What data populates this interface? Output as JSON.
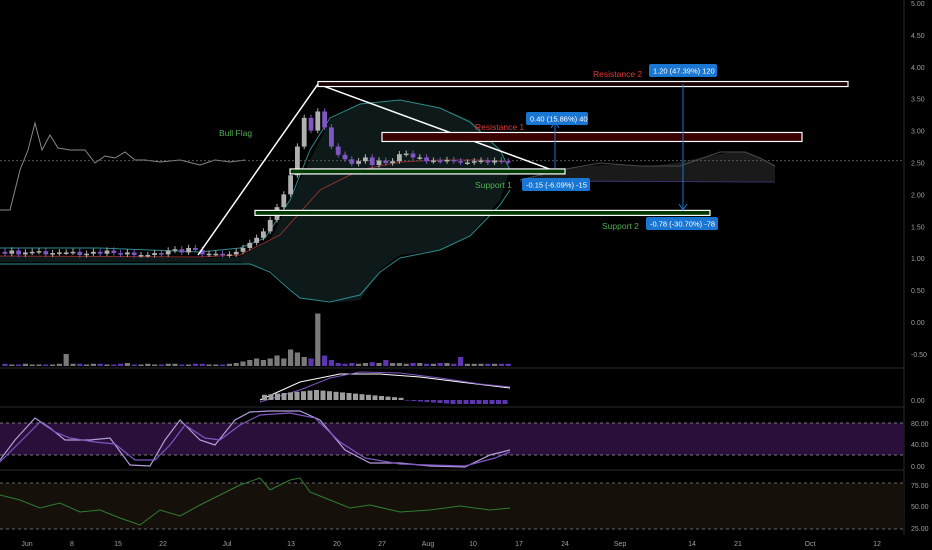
{
  "chart_data": {
    "type": "candlestick",
    "title": "",
    "price_axis": {
      "ticks": [
        "5.00",
        "4.50",
        "4.00",
        "3.50",
        "3.00",
        "2.50",
        "2.00",
        "1.50",
        "1.00",
        "0.50",
        "0.00",
        "-0.50"
      ],
      "ylim": [
        -0.5,
        5.0
      ]
    },
    "x_axis": {
      "ticks": [
        "Jun",
        "8",
        "15",
        "22",
        "Jul",
        "13",
        "20",
        "27",
        "Aug",
        "10",
        "17",
        "24",
        "Sep",
        "14",
        "21",
        "Oct",
        "12"
      ]
    },
    "candles": {
      "date_range": [
        "Jun 1",
        "Aug 14"
      ],
      "open": [
        1.1,
        1.07,
        1.12,
        1.06,
        1.09,
        1.1,
        1.11,
        1.06,
        1.08,
        1.09,
        1.09,
        1.1,
        1.05,
        1.07,
        1.1,
        1.07,
        1.12,
        1.08,
        1.06,
        1.09,
        1.05,
        1.05,
        1.05,
        1.08,
        1.06,
        1.12,
        1.14,
        1.09,
        1.16,
        1.13,
        1.06,
        1.07,
        1.07,
        1.05,
        1.06,
        1.1,
        1.16,
        1.24,
        1.32,
        1.42,
        1.6,
        1.8,
        2.0,
        2.3,
        2.75,
        3.2,
        3.0,
        3.3,
        3.05,
        2.75,
        2.62,
        2.55,
        2.48,
        2.52,
        2.58,
        2.46,
        2.53,
        2.49,
        2.52,
        2.63,
        2.64,
        2.58,
        2.58,
        2.52,
        2.53,
        2.52,
        2.54,
        2.52,
        2.5,
        2.5,
        2.52,
        2.53,
        2.5,
        2.53,
        2.52
      ],
      "close": [
        1.07,
        1.12,
        1.06,
        1.09,
        1.1,
        1.11,
        1.06,
        1.08,
        1.09,
        1.09,
        1.1,
        1.05,
        1.07,
        1.1,
        1.07,
        1.12,
        1.08,
        1.06,
        1.09,
        1.05,
        1.05,
        1.05,
        1.08,
        1.06,
        1.12,
        1.14,
        1.09,
        1.16,
        1.13,
        1.06,
        1.07,
        1.07,
        1.05,
        1.06,
        1.1,
        1.16,
        1.24,
        1.32,
        1.42,
        1.6,
        1.8,
        2.0,
        2.3,
        2.75,
        3.2,
        3.0,
        3.3,
        3.05,
        2.75,
        2.62,
        2.55,
        2.48,
        2.52,
        2.58,
        2.46,
        2.53,
        2.49,
        2.52,
        2.63,
        2.64,
        2.58,
        2.58,
        2.52,
        2.53,
        2.52,
        2.54,
        2.52,
        2.5,
        2.5,
        2.52,
        2.53,
        2.5,
        2.53,
        2.52,
        2.51
      ]
    },
    "annotations": [
      {
        "label": "Bull Flag",
        "color": "#4caf50"
      },
      {
        "label": "Resistance 2",
        "color": "#e53935"
      },
      {
        "label": "Resistance 1",
        "color": "#e53935"
      },
      {
        "label": "Support 1",
        "color": "#4caf50"
      },
      {
        "label": "Support 2",
        "color": "#4caf50"
      }
    ],
    "levels": [
      {
        "name": "Resistance 2",
        "price": 3.73
      },
      {
        "name": "Resistance 1",
        "price": 2.9
      },
      {
        "name": "Support 1",
        "price": 2.36
      },
      {
        "name": "Support 2",
        "price": 1.71
      }
    ],
    "measure_labels": [
      {
        "text": "1.20 (47.39%) 120",
        "color": "#1976d2"
      },
      {
        "text": "0.40 (15.86%) 40",
        "color": "#1976d2"
      },
      {
        "text": "-0.15 (-6.09%) -15",
        "color": "#1976d2"
      },
      {
        "text": "-0.78 (-30.70%) -78",
        "color": "#1976d2"
      }
    ],
    "current_price_line": 2.53,
    "macd_panel": {
      "ticks": [
        "0.00"
      ]
    },
    "stoch_panel": {
      "ticks": [
        "80.00",
        "40.00",
        "0.00"
      ],
      "bands": [
        20,
        80
      ]
    },
    "rsi_panel": {
      "ticks": [
        "75.00",
        "50.00",
        "25.00"
      ],
      "bands": [
        30,
        70
      ]
    },
    "colors": {
      "up_candle": "#b0b0b0",
      "down_candle": "#7e57c2",
      "volume_up": "#7a7a7a",
      "volume_down": "#5e35b1",
      "pattern_lines": "#ffffff",
      "axis_text": "#9e9e9e",
      "background": "#000000"
    }
  }
}
